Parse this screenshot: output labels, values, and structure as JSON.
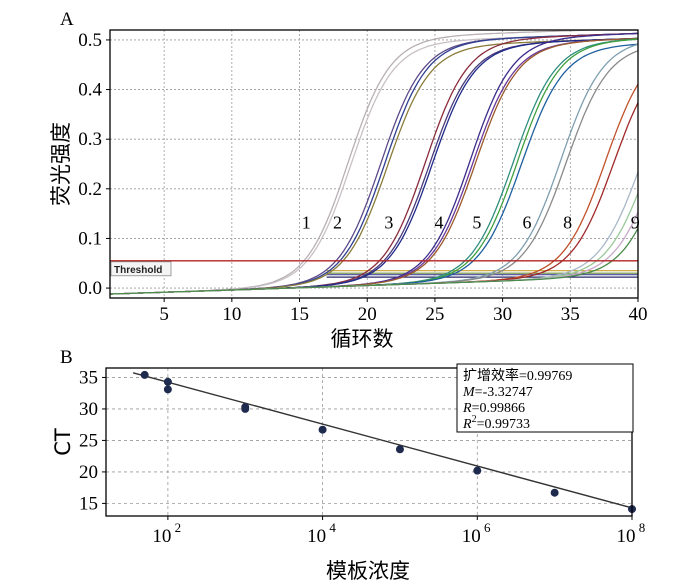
{
  "colors": {
    "threshold": "#b22222",
    "grid": "#9a9a9a",
    "fit_line": "#333333",
    "points": "#1f2a4f",
    "box": "#000000"
  },
  "chart_data": [
    {
      "id": "A",
      "panel_label": "A",
      "type": "line",
      "xlabel": "循环数",
      "ylabel": "荧光强度",
      "xlim": [
        1,
        40
      ],
      "ylim": [
        -0.02,
        0.52
      ],
      "xticks": [
        5,
        10,
        15,
        20,
        25,
        30,
        35,
        40
      ],
      "yticks": [
        0.0,
        0.1,
        0.2,
        0.3,
        0.4,
        0.5
      ],
      "ytick_labels": [
        "0.0",
        "0.1",
        "0.2",
        "0.3",
        "0.4",
        "0.5"
      ],
      "grid": "dashed",
      "threshold": {
        "label": "Threshold",
        "value": 0.055
      },
      "curve_labels": [
        {
          "text": "1",
          "x": 15.5,
          "y": 0.12
        },
        {
          "text": "2",
          "x": 17.8,
          "y": 0.12
        },
        {
          "text": "3",
          "x": 21.6,
          "y": 0.12
        },
        {
          "text": "4",
          "x": 25.3,
          "y": 0.12
        },
        {
          "text": "5",
          "x": 28.1,
          "y": 0.12
        },
        {
          "text": "6",
          "x": 31.8,
          "y": 0.12
        },
        {
          "text": "8",
          "x": 34.8,
          "y": 0.12
        },
        {
          "text": "9",
          "x": 39.8,
          "y": 0.12
        }
      ],
      "series": [
        {
          "group": "1",
          "midpoint": 18.6,
          "plateau": 0.5,
          "color": "#b8b0b4"
        },
        {
          "group": "1",
          "midpoint": 18.8,
          "plateau": 0.49,
          "color": "#c8c0c6"
        },
        {
          "group": "2",
          "midpoint": 21.0,
          "plateau": 0.49,
          "color": "#5c4a8a"
        },
        {
          "group": "2",
          "midpoint": 21.3,
          "plateau": 0.49,
          "color": "#2f3f8f"
        },
        {
          "group": "2",
          "midpoint": 21.5,
          "plateau": 0.48,
          "color": "#8a7d3a"
        },
        {
          "group": "3",
          "midpoint": 24.3,
          "plateau": 0.49,
          "color": "#8a2c3c"
        },
        {
          "group": "3",
          "midpoint": 24.6,
          "plateau": 0.48,
          "color": "#4a3a7a"
        },
        {
          "group": "3",
          "midpoint": 24.8,
          "plateau": 0.48,
          "color": "#1f2a8a"
        },
        {
          "group": "4",
          "midpoint": 27.6,
          "plateau": 0.49,
          "color": "#3c2c8c"
        },
        {
          "group": "4",
          "midpoint": 27.8,
          "plateau": 0.48,
          "color": "#6a3a9a"
        },
        {
          "group": "4",
          "midpoint": 28.0,
          "plateau": 0.48,
          "color": "#9a5a2a"
        },
        {
          "group": "5",
          "midpoint": 30.8,
          "plateau": 0.48,
          "color": "#2f8f7f"
        },
        {
          "group": "5",
          "midpoint": 31.1,
          "plateau": 0.48,
          "color": "#3f9f3f"
        },
        {
          "group": "5",
          "midpoint": 31.4,
          "plateau": 0.47,
          "color": "#1f5fa0"
        },
        {
          "group": "6",
          "midpoint": 34.3,
          "plateau": 0.48,
          "color": "#7f9faf"
        },
        {
          "group": "6",
          "midpoint": 34.7,
          "plateau": 0.47,
          "color": "#8a8a8a"
        },
        {
          "group": "8",
          "midpoint": 37.6,
          "plateau": 0.47,
          "color": "#c0502a"
        },
        {
          "group": "8",
          "midpoint": 38.2,
          "plateau": 0.46,
          "color": "#a02a2a"
        },
        {
          "group": "9",
          "midpoint": 40.2,
          "plateau": 0.45,
          "color": "#a8b8c8"
        },
        {
          "group": "9",
          "midpoint": 40.8,
          "plateau": 0.45,
          "color": "#9ac89a"
        },
        {
          "group": "9",
          "midpoint": 41.4,
          "plateau": 0.45,
          "color": "#c8a8c8"
        },
        {
          "group": "9",
          "midpoint": 42.0,
          "plateau": 0.45,
          "color": "#4a8a4a"
        }
      ],
      "flat_lines": [
        {
          "value": 0.035,
          "color": "#c8a030"
        },
        {
          "value": 0.03,
          "color": "#6a8a3a"
        },
        {
          "value": 0.027,
          "color": "#4a4a9a"
        },
        {
          "value": 0.022,
          "color": "#2a2a6a"
        }
      ]
    },
    {
      "id": "B",
      "panel_label": "B",
      "type": "scatter",
      "xlabel": "模板浓度",
      "ylabel": "CT",
      "xscale": "log10",
      "xlim_log10": [
        1.2,
        8.0
      ],
      "ylim": [
        13,
        36.5
      ],
      "xticks_log10": [
        2,
        4,
        6,
        8
      ],
      "xtick_labels": [
        {
          "base": "10",
          "exp": "2"
        },
        {
          "base": "10",
          "exp": "4"
        },
        {
          "base": "10",
          "exp": "6"
        },
        {
          "base": "10",
          "exp": "8"
        }
      ],
      "yticks": [
        15,
        20,
        25,
        30,
        35
      ],
      "grid": "dashed",
      "points": [
        {
          "log10_x": 1.7,
          "y": 35.4
        },
        {
          "log10_x": 2.0,
          "y": 34.3
        },
        {
          "log10_x": 2.0,
          "y": 33.1
        },
        {
          "log10_x": 3.0,
          "y": 30.3
        },
        {
          "log10_x": 3.0,
          "y": 30.0
        },
        {
          "log10_x": 4.0,
          "y": 26.7
        },
        {
          "log10_x": 5.0,
          "y": 23.6
        },
        {
          "log10_x": 6.0,
          "y": 20.2
        },
        {
          "log10_x": 7.0,
          "y": 16.7
        },
        {
          "log10_x": 8.0,
          "y": 14.1
        }
      ],
      "fit": {
        "slope": -3.32747,
        "intercept": 40.9
      },
      "stats": [
        {
          "prefix": "扩增效率=",
          "value": "0.99769"
        },
        {
          "prefix": "M",
          "value": "=-3.32747"
        },
        {
          "prefix": "R",
          "value": "=0.99866"
        },
        {
          "prefix": "R",
          "sup": "2",
          "value": "=0.99733"
        }
      ]
    }
  ]
}
